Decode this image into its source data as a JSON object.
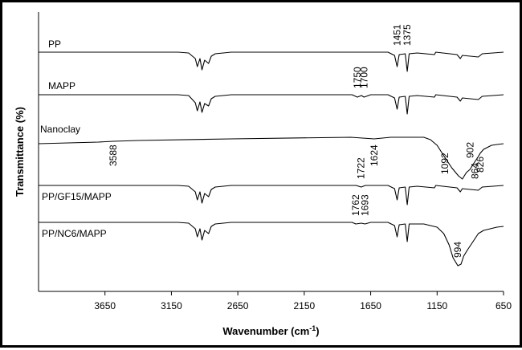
{
  "chart_data": {
    "type": "line",
    "xlabel": "Wavenumber (cm",
    "xlabel_sup": "-1",
    "xlabel_close": ")",
    "ylabel": "Transmittance (%)",
    "xlim": [
      4150,
      650
    ],
    "x_reversed": true,
    "ticks": [
      3650,
      3150,
      2650,
      2150,
      1650,
      1150,
      650
    ],
    "grid": false,
    "series": [
      {
        "name": "PP",
        "points": [
          [
            4150,
            0
          ],
          [
            3100,
            0
          ],
          [
            3020,
            -1
          ],
          [
            2970,
            -8
          ],
          [
            2955,
            -18
          ],
          [
            2935,
            -8
          ],
          [
            2920,
            -22
          ],
          [
            2900,
            -10
          ],
          [
            2870,
            -14
          ],
          [
            2850,
            -5
          ],
          [
            2820,
            -2
          ],
          [
            2700,
            0
          ],
          [
            1520,
            0
          ],
          [
            1470,
            -4
          ],
          [
            1451,
            -18
          ],
          [
            1435,
            -3
          ],
          [
            1390,
            -2
          ],
          [
            1375,
            -24
          ],
          [
            1360,
            -2
          ],
          [
            1300,
            -1
          ],
          [
            1170,
            -3
          ],
          [
            1160,
            0
          ],
          [
            1000,
            -3
          ],
          [
            975,
            -8
          ],
          [
            960,
            -4
          ],
          [
            840,
            -6
          ],
          [
            810,
            -2
          ],
          [
            650,
            0
          ]
        ],
        "annotations": [
          {
            "x": 1451,
            "label": "1451"
          },
          {
            "x": 1375,
            "label": "1375"
          }
        ]
      },
      {
        "name": "MAPP",
        "points": [
          [
            4150,
            0
          ],
          [
            3100,
            0
          ],
          [
            3020,
            -1
          ],
          [
            2970,
            -10
          ],
          [
            2955,
            -20
          ],
          [
            2935,
            -9
          ],
          [
            2920,
            -22
          ],
          [
            2900,
            -11
          ],
          [
            2870,
            -14
          ],
          [
            2850,
            -5
          ],
          [
            2820,
            -2
          ],
          [
            2700,
            0
          ],
          [
            1790,
            0
          ],
          [
            1750,
            -3
          ],
          [
            1720,
            -1
          ],
          [
            1700,
            -3
          ],
          [
            1650,
            0
          ],
          [
            1520,
            0
          ],
          [
            1470,
            -4
          ],
          [
            1451,
            -18
          ],
          [
            1435,
            -3
          ],
          [
            1390,
            -2
          ],
          [
            1375,
            -24
          ],
          [
            1360,
            -2
          ],
          [
            1300,
            -1
          ],
          [
            1170,
            -3
          ],
          [
            1160,
            0
          ],
          [
            1000,
            -3
          ],
          [
            975,
            -8
          ],
          [
            960,
            -4
          ],
          [
            840,
            -6
          ],
          [
            810,
            -2
          ],
          [
            650,
            0
          ]
        ],
        "annotations": [
          {
            "x": 1750,
            "label": "1750"
          },
          {
            "x": 1700,
            "label": "1700"
          }
        ]
      },
      {
        "name": "Nanoclay",
        "points": [
          [
            4150,
            -8
          ],
          [
            3700,
            -6
          ],
          [
            3588,
            -5
          ],
          [
            3400,
            -4
          ],
          [
            2700,
            -2
          ],
          [
            1800,
            0
          ],
          [
            1624,
            -2
          ],
          [
            1500,
            0
          ],
          [
            1250,
            0
          ],
          [
            1200,
            -3
          ],
          [
            1150,
            -10
          ],
          [
            1092,
            -25
          ],
          [
            1040,
            -38
          ],
          [
            990,
            -48
          ],
          [
            960,
            -52
          ],
          [
            930,
            -44
          ],
          [
            902,
            -40
          ],
          [
            880,
            -34
          ],
          [
            864,
            -30
          ],
          [
            840,
            -24
          ],
          [
            826,
            -20
          ],
          [
            800,
            -15
          ],
          [
            740,
            -10
          ],
          [
            700,
            -9
          ],
          [
            650,
            -8
          ]
        ],
        "annotations": [
          {
            "x": 3588,
            "label": "3588"
          },
          {
            "x": 1624,
            "label": "1624"
          },
          {
            "x": 1092,
            "label": "1092"
          },
          {
            "x": 902,
            "label": "902"
          },
          {
            "x": 864,
            "label": "864"
          },
          {
            "x": 826,
            "label": "826"
          }
        ]
      },
      {
        "name": "PP/GF15/MAPP",
        "points": [
          [
            4150,
            0
          ],
          [
            3100,
            0
          ],
          [
            3020,
            -1
          ],
          [
            2970,
            -8
          ],
          [
            2955,
            -18
          ],
          [
            2935,
            -8
          ],
          [
            2920,
            -22
          ],
          [
            2900,
            -10
          ],
          [
            2870,
            -14
          ],
          [
            2850,
            -5
          ],
          [
            2820,
            -2
          ],
          [
            2700,
            0
          ],
          [
            1760,
            0
          ],
          [
            1722,
            -2
          ],
          [
            1690,
            0
          ],
          [
            1520,
            0
          ],
          [
            1470,
            -4
          ],
          [
            1451,
            -18
          ],
          [
            1435,
            -3
          ],
          [
            1390,
            -2
          ],
          [
            1375,
            -24
          ],
          [
            1360,
            -2
          ],
          [
            1300,
            -1
          ],
          [
            1170,
            -3
          ],
          [
            1160,
            0
          ],
          [
            1000,
            -3
          ],
          [
            975,
            -8
          ],
          [
            960,
            -4
          ],
          [
            840,
            -6
          ],
          [
            810,
            -2
          ],
          [
            650,
            0
          ]
        ],
        "annotations": [
          {
            "x": 1722,
            "label": "1722"
          }
        ]
      },
      {
        "name": "PP/NC6/MAPP",
        "points": [
          [
            4150,
            0
          ],
          [
            3100,
            0
          ],
          [
            3020,
            -1
          ],
          [
            2970,
            -8
          ],
          [
            2955,
            -18
          ],
          [
            2935,
            -8
          ],
          [
            2920,
            -22
          ],
          [
            2900,
            -10
          ],
          [
            2870,
            -14
          ],
          [
            2850,
            -5
          ],
          [
            2820,
            -2
          ],
          [
            2700,
            0
          ],
          [
            1790,
            0
          ],
          [
            1762,
            -2
          ],
          [
            1720,
            -1
          ],
          [
            1693,
            -2
          ],
          [
            1650,
            0
          ],
          [
            1520,
            0
          ],
          [
            1470,
            -4
          ],
          [
            1451,
            -18
          ],
          [
            1435,
            -3
          ],
          [
            1390,
            -2
          ],
          [
            1375,
            -24
          ],
          [
            1360,
            -2
          ],
          [
            1250,
            -2
          ],
          [
            1150,
            -6
          ],
          [
            1100,
            -14
          ],
          [
            1060,
            -28
          ],
          [
            1030,
            -44
          ],
          [
            994,
            -54
          ],
          [
            970,
            -52
          ],
          [
            950,
            -42
          ],
          [
            920,
            -34
          ],
          [
            880,
            -24
          ],
          [
            840,
            -14
          ],
          [
            800,
            -10
          ],
          [
            700,
            -6
          ],
          [
            650,
            -5
          ]
        ],
        "annotations": [
          {
            "x": 1762,
            "label": "1762"
          },
          {
            "x": 1693,
            "label": "1693"
          },
          {
            "x": 994,
            "label": "994"
          }
        ]
      }
    ]
  }
}
